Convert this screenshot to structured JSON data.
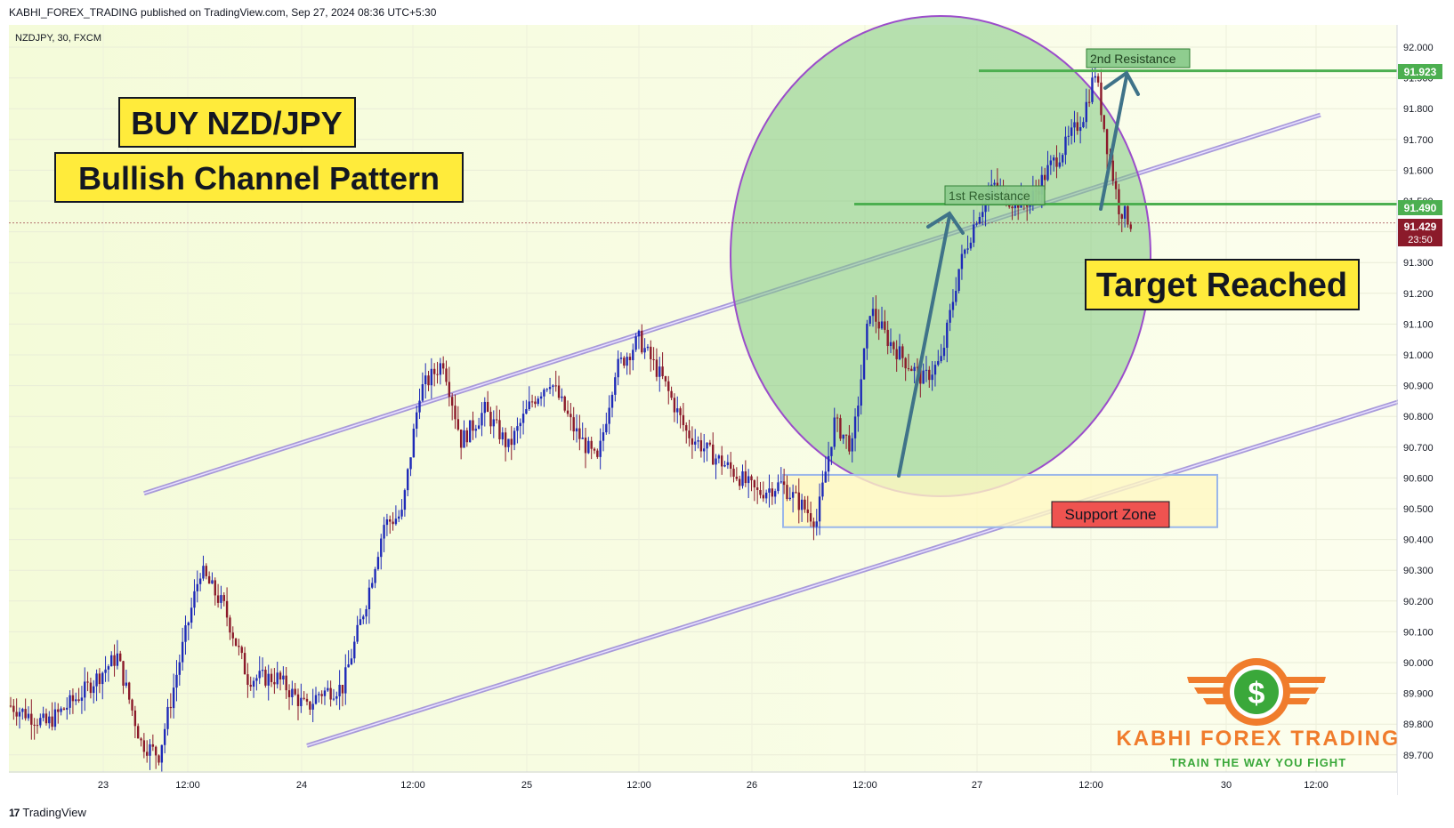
{
  "header": {
    "published": "KABHI_FOREX_TRADING published on TradingView.com, Sep 27, 2024 08:36 UTC+5:30"
  },
  "symbol_info": "NZDJPY, 30, FXCM",
  "footer": {
    "brand": "TradingView",
    "logo": "tv-logo-icon"
  },
  "annotations": {
    "title_line1": "BUY NZD/JPY",
    "title_line2": "Bullish Channel Pattern",
    "target": "Target Reached",
    "support": "Support Zone",
    "res1": "1st Resistance",
    "res2": "2nd Resistance"
  },
  "price_tags": {
    "res2": "91.923",
    "res1": "91.490",
    "last": "91.429",
    "countdown": "23:50"
  },
  "logo": {
    "name": "KABHI FOREX TRADING",
    "tagline": "TRAIN THE WAY YOU FIGHT",
    "icon": "dollar-coin-icon"
  },
  "colors": {
    "bull": "#1e2ab8",
    "bear": "#8b1a2a",
    "channel": "#9b8ad8",
    "resistance": "#4caf50",
    "ellipse_fill": "#7fc87f",
    "ellipse_stroke": "#9b4dca",
    "arrow": "#3f7389",
    "title_bg": "#ffeb3b",
    "support_label_bg": "#ef5350",
    "support_zone_bg": "#fff7c2",
    "support_zone_border": "#9bb7ea",
    "last_price_tag": "#8b1a2a",
    "logo_orange": "#f07c2c",
    "logo_green": "#3aa83a"
  },
  "chart_data": {
    "type": "candlestick",
    "symbol": "NZDJPY",
    "timeframe": "30",
    "source": "FXCM",
    "x_ticks": [
      "23",
      "12:00",
      "24",
      "12:00",
      "25",
      "12:00",
      "26",
      "12:00",
      "27",
      "12:00",
      "30",
      "12:00"
    ],
    "y_ticks": [
      "92.000",
      "91.900",
      "91.800",
      "91.700",
      "91.600",
      "91.500",
      "91.400",
      "91.300",
      "91.200",
      "91.100",
      "91.000",
      "90.900",
      "90.800",
      "90.700",
      "90.600",
      "90.500",
      "90.400",
      "90.300",
      "90.200",
      "90.100",
      "90.000",
      "89.900",
      "89.800",
      "89.700"
    ],
    "ylim": [
      89.7,
      92.03
    ],
    "price_path": [
      [
        0,
        89.86
      ],
      [
        12,
        89.8
      ],
      [
        24,
        89.9
      ],
      [
        36,
        90.02
      ],
      [
        44,
        89.74
      ],
      [
        50,
        89.7
      ],
      [
        58,
        90.05
      ],
      [
        64,
        90.3
      ],
      [
        72,
        90.18
      ],
      [
        80,
        89.95
      ],
      [
        90,
        89.95
      ],
      [
        100,
        89.85
      ],
      [
        104,
        89.9
      ],
      [
        112,
        89.92
      ],
      [
        120,
        90.2
      ],
      [
        126,
        90.45
      ],
      [
        132,
        90.48
      ],
      [
        138,
        90.88
      ],
      [
        146,
        90.98
      ],
      [
        152,
        90.72
      ],
      [
        160,
        90.82
      ],
      [
        168,
        90.7
      ],
      [
        176,
        90.85
      ],
      [
        182,
        90.92
      ],
      [
        190,
        90.76
      ],
      [
        198,
        90.65
      ],
      [
        204,
        90.95
      ],
      [
        212,
        91.05
      ],
      [
        220,
        90.92
      ],
      [
        228,
        90.75
      ],
      [
        236,
        90.68
      ],
      [
        244,
        90.62
      ],
      [
        252,
        90.55
      ],
      [
        260,
        90.58
      ],
      [
        266,
        90.52
      ],
      [
        272,
        90.46
      ],
      [
        278,
        90.78
      ],
      [
        284,
        90.7
      ],
      [
        290,
        91.15
      ],
      [
        296,
        91.05
      ],
      [
        302,
        90.98
      ],
      [
        308,
        90.92
      ],
      [
        314,
        90.98
      ],
      [
        320,
        91.28
      ],
      [
        326,
        91.45
      ],
      [
        332,
        91.55
      ],
      [
        338,
        91.5
      ],
      [
        344,
        91.5
      ],
      [
        350,
        91.6
      ],
      [
        356,
        91.68
      ],
      [
        362,
        91.78
      ],
      [
        366,
        91.92
      ],
      [
        370,
        91.68
      ],
      [
        374,
        91.48
      ],
      [
        378,
        91.43
      ]
    ],
    "channel": {
      "upper": {
        "from": [
          45,
          90.55
        ],
        "to": [
          442,
          91.78
        ]
      },
      "lower": {
        "from": [
          100,
          89.73
        ],
        "to": [
          512,
          90.98
        ]
      }
    },
    "resistance_levels": [
      {
        "label": "1st Resistance",
        "price": 91.49,
        "tag": "91.490"
      },
      {
        "label": "2nd Resistance",
        "price": 91.923,
        "tag": "91.923"
      }
    ],
    "support_zone": {
      "label": "Support Zone",
      "from_price": 90.44,
      "to_price": 90.61
    },
    "last_price": 91.429,
    "countdown": "23:50",
    "grid": true
  }
}
